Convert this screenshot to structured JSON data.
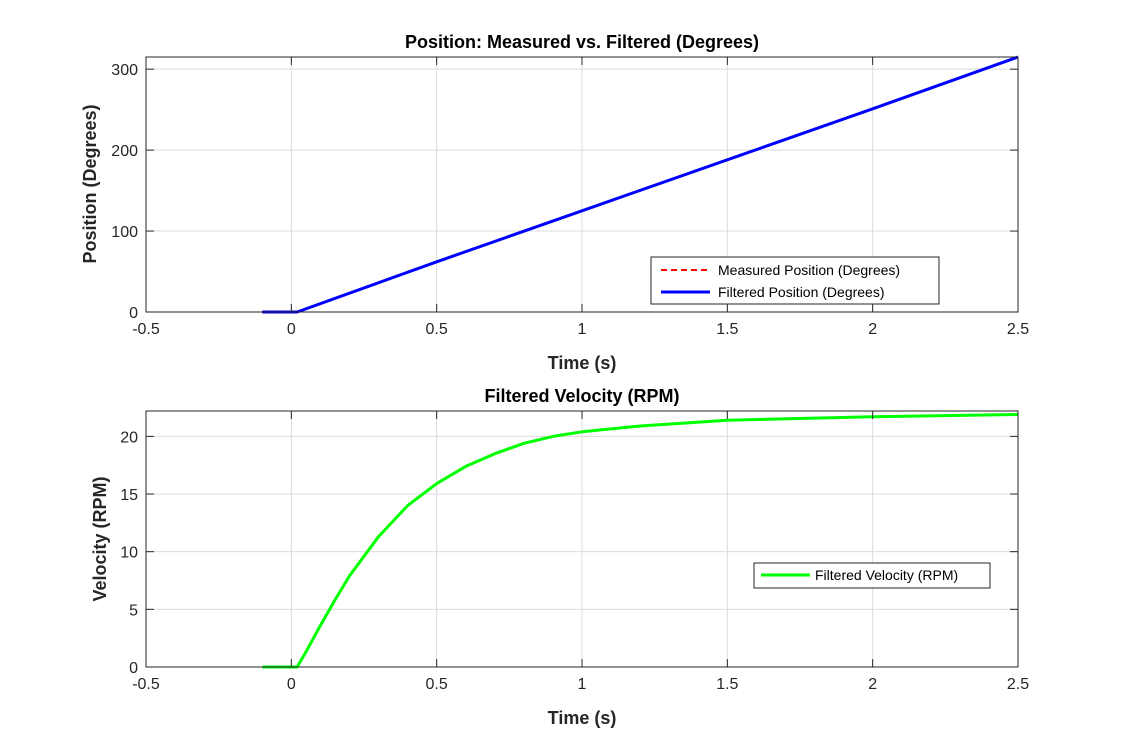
{
  "chart_data": [
    {
      "type": "line",
      "title": "Position: Measured vs. Filtered (Degrees)",
      "xlabel": "Time (s)",
      "ylabel": "Position (Degrees)",
      "xlim": [
        -0.5,
        2.5
      ],
      "ylim": [
        0,
        315
      ],
      "xticks": [
        -0.5,
        0,
        0.5,
        1,
        1.5,
        2,
        2.5
      ],
      "xtick_labels": [
        "-0.5",
        "0",
        "0.5",
        "1",
        "1.5",
        "2",
        "2.5"
      ],
      "yticks": [
        0,
        100,
        200,
        300
      ],
      "ytick_labels": [
        "0",
        "100",
        "200",
        "300"
      ],
      "grid": true,
      "legend_position": "bottom-right",
      "series": [
        {
          "name": "Measured Position (Degrees)",
          "color": "#ff0000",
          "style": "dashed",
          "x": [
            -0.1,
            0,
            0.02,
            0.5,
            1,
            1.5,
            2,
            2.5
          ],
          "y": [
            0,
            0,
            0,
            62,
            125,
            188,
            251,
            315
          ]
        },
        {
          "name": "Filtered Position (Degrees)",
          "color": "#0000ff",
          "style": "solid",
          "x": [
            -0.1,
            0,
            0.02,
            0.5,
            1,
            1.5,
            2,
            2.5
          ],
          "y": [
            0,
            0,
            0,
            62,
            125,
            188,
            251,
            315
          ]
        }
      ]
    },
    {
      "type": "line",
      "title": "Filtered Velocity (RPM)",
      "xlabel": "Time (s)",
      "ylabel": "Velocity (RPM)",
      "xlim": [
        -0.5,
        2.5
      ],
      "ylim": [
        0,
        22.2
      ],
      "xticks": [
        -0.5,
        0,
        0.5,
        1,
        1.5,
        2,
        2.5
      ],
      "xtick_labels": [
        "-0.5",
        "0",
        "0.5",
        "1",
        "1.5",
        "2",
        "2.5"
      ],
      "yticks": [
        0,
        5,
        10,
        15,
        20
      ],
      "ytick_labels": [
        "0",
        "5",
        "10",
        "15",
        "20"
      ],
      "grid": true,
      "legend_position": "right",
      "series": [
        {
          "name": "Filtered Velocity (RPM)",
          "color": "#00ff00",
          "style": "solid",
          "x": [
            -0.1,
            0,
            0.02,
            0.05,
            0.1,
            0.15,
            0.2,
            0.3,
            0.4,
            0.5,
            0.6,
            0.7,
            0.8,
            0.9,
            1.0,
            1.2,
            1.5,
            2.0,
            2.5
          ],
          "y": [
            0,
            0,
            0,
            1.3,
            3.6,
            5.8,
            7.9,
            11.3,
            14.0,
            15.9,
            17.4,
            18.5,
            19.4,
            20.0,
            20.4,
            20.9,
            21.4,
            21.7,
            21.9
          ]
        }
      ]
    }
  ]
}
